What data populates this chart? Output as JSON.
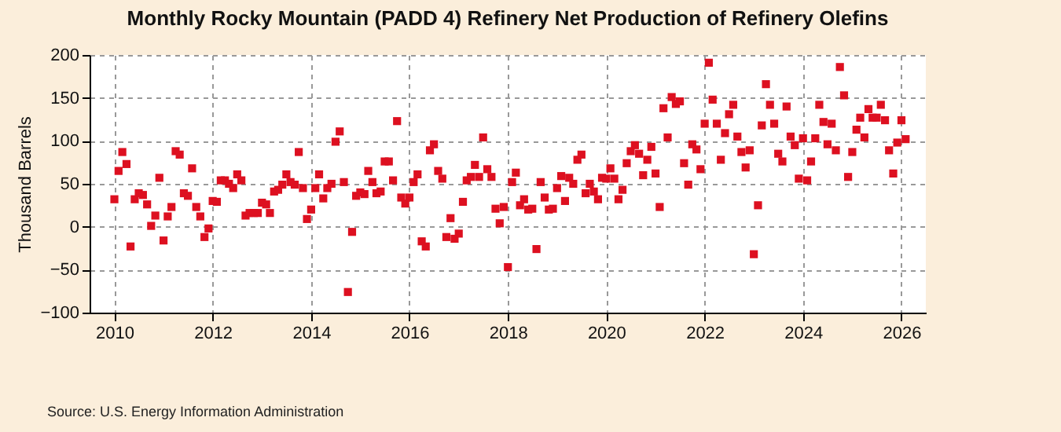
{
  "chart_data": {
    "type": "scatter",
    "title": "Monthly Rocky Mountain (PADD 4) Refinery Net Production of Refinery Olefins",
    "ylabel": "Thousand Barrels",
    "annotations": [
      "Source: U.S. Energy Information Administration"
    ],
    "x": [
      "2010-01",
      "2010-02",
      "2010-03",
      "2010-04",
      "2010-05",
      "2010-06",
      "2010-07",
      "2010-08",
      "2010-09",
      "2010-10",
      "2010-11",
      "2010-12",
      "2011-01",
      "2011-02",
      "2011-03",
      "2011-04",
      "2011-05",
      "2011-06",
      "2011-07",
      "2011-08",
      "2011-09",
      "2011-10",
      "2011-11",
      "2011-12",
      "2012-01",
      "2012-02",
      "2012-03",
      "2012-04",
      "2012-05",
      "2012-06",
      "2012-07",
      "2012-08",
      "2012-09",
      "2012-10",
      "2012-11",
      "2012-12",
      "2013-01",
      "2013-02",
      "2013-03",
      "2013-04",
      "2013-05",
      "2013-06",
      "2013-07",
      "2013-08",
      "2013-09",
      "2013-10",
      "2013-11",
      "2013-12",
      "2014-01",
      "2014-02",
      "2014-03",
      "2014-04",
      "2014-05",
      "2014-06",
      "2014-07",
      "2014-08",
      "2014-09",
      "2014-10",
      "2014-11",
      "2014-12",
      "2015-01",
      "2015-02",
      "2015-03",
      "2015-04",
      "2015-05",
      "2015-06",
      "2015-07",
      "2015-08",
      "2015-09",
      "2015-10",
      "2015-11",
      "2015-12",
      "2016-01",
      "2016-02",
      "2016-03",
      "2016-04",
      "2016-05",
      "2016-06",
      "2016-07",
      "2016-08",
      "2016-09",
      "2016-10",
      "2016-11",
      "2016-12",
      "2017-01",
      "2017-02",
      "2017-03",
      "2017-04",
      "2017-05",
      "2017-06",
      "2017-07",
      "2017-08",
      "2017-09",
      "2017-10",
      "2017-11",
      "2017-12",
      "2018-01",
      "2018-02",
      "2018-03",
      "2018-04",
      "2018-05",
      "2018-06",
      "2018-07",
      "2018-08",
      "2018-09",
      "2018-10",
      "2018-11",
      "2018-12",
      "2019-01",
      "2019-02",
      "2019-03",
      "2019-04",
      "2019-05",
      "2019-06",
      "2019-07",
      "2019-08",
      "2019-09",
      "2019-10",
      "2019-11",
      "2019-12",
      "2020-01",
      "2020-02",
      "2020-03",
      "2020-04",
      "2020-05",
      "2020-06",
      "2020-07",
      "2020-08",
      "2020-09",
      "2020-10",
      "2020-11",
      "2020-12",
      "2021-01",
      "2021-02",
      "2021-03",
      "2021-04",
      "2021-05",
      "2021-06",
      "2021-07",
      "2021-08",
      "2021-09",
      "2021-10",
      "2021-11",
      "2021-12",
      "2022-01",
      "2022-02",
      "2022-03",
      "2022-04",
      "2022-05",
      "2022-06",
      "2022-07",
      "2022-08",
      "2022-09",
      "2022-10",
      "2022-11",
      "2022-12",
      "2023-01",
      "2023-02",
      "2023-03",
      "2023-04",
      "2023-05",
      "2023-06",
      "2023-07",
      "2023-08",
      "2023-09",
      "2023-10",
      "2023-11",
      "2023-12",
      "2024-01",
      "2024-02",
      "2024-03",
      "2024-04",
      "2024-05",
      "2024-06",
      "2024-07",
      "2024-08",
      "2024-09",
      "2024-10",
      "2024-11",
      "2024-12",
      "2025-01",
      "2025-02",
      "2025-03",
      "2025-04",
      "2025-05",
      "2025-06",
      "2025-07",
      "2025-08",
      "2025-09",
      "2025-10",
      "2025-11",
      "2025-12",
      "2026-01",
      "2026-02"
    ],
    "values": [
      32,
      65,
      87,
      73,
      -23,
      32,
      39,
      37,
      26,
      1,
      13,
      57,
      -16,
      12,
      23,
      88,
      84,
      39,
      36,
      68,
      23,
      12,
      -12,
      -2,
      30,
      29,
      54,
      54,
      50,
      45,
      61,
      54,
      13,
      16,
      16,
      16,
      28,
      26,
      16,
      41,
      43,
      49,
      61,
      52,
      49,
      87,
      45,
      9,
      20,
      45,
      61,
      33,
      45,
      50,
      99,
      111,
      52,
      -76,
      -6,
      36,
      40,
      38,
      65,
      52,
      39,
      41,
      76,
      76,
      54,
      123,
      34,
      27,
      34,
      52,
      61,
      -17,
      -23,
      89,
      96,
      65,
      56,
      -12,
      10,
      -14,
      -8,
      29,
      54,
      58,
      72,
      58,
      104,
      67,
      58,
      21,
      4,
      23,
      -47,
      52,
      63,
      25,
      32,
      20,
      21,
      -26,
      52,
      34,
      20,
      21,
      45,
      59,
      30,
      57,
      50,
      78,
      84,
      39,
      50,
      41,
      32,
      57,
      56,
      68,
      56,
      32,
      43,
      74,
      88,
      95,
      85,
      60,
      78,
      93,
      62,
      23,
      138,
      104,
      151,
      143,
      146,
      74,
      49,
      96,
      90,
      67,
      120,
      191,
      148,
      120,
      78,
      109,
      131,
      142,
      105,
      87,
      69,
      89,
      -32,
      25,
      118,
      166,
      142,
      120,
      85,
      76,
      140,
      105,
      95,
      56,
      103,
      54,
      76,
      103,
      142,
      122,
      96,
      120,
      89,
      186,
      153,
      58,
      87,
      113,
      127,
      104,
      137,
      127,
      127,
      142,
      124,
      89,
      62,
      98,
      124,
      102
    ],
    "color": "#dd1020",
    "marker": "square",
    "grid": true,
    "xlim": [
      "2009-07",
      "2026-07"
    ],
    "xticks": [
      "2010",
      "2012",
      "2014",
      "2016",
      "2018",
      "2020",
      "2022",
      "2024",
      "2026"
    ],
    "ylim": [
      -100,
      200
    ],
    "yticks": [
      -100,
      -50,
      0,
      50,
      100,
      150,
      200
    ]
  }
}
